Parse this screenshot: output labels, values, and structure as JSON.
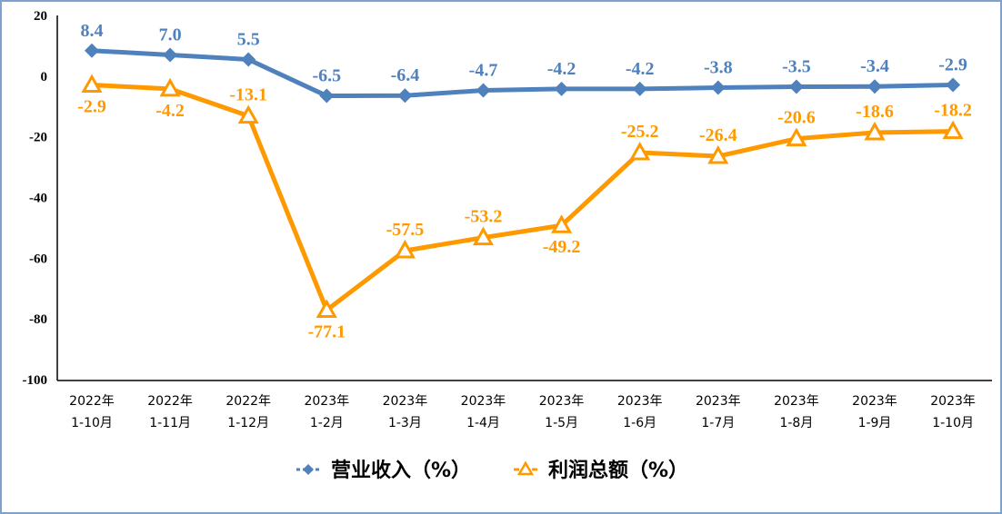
{
  "chart_data": {
    "type": "line",
    "categories": [
      [
        "2022年",
        "1-10月"
      ],
      [
        "2022年",
        "1-11月"
      ],
      [
        "2022年",
        "1-12月"
      ],
      [
        "2023年",
        "1-2月"
      ],
      [
        "2023年",
        "1-3月"
      ],
      [
        "2023年",
        "1-4月"
      ],
      [
        "2023年",
        "1-5月"
      ],
      [
        "2023年",
        "1-6月"
      ],
      [
        "2023年",
        "1-7月"
      ],
      [
        "2023年",
        "1-8月"
      ],
      [
        "2023年",
        "1-9月"
      ],
      [
        "2023年",
        "1-10月"
      ]
    ],
    "series": [
      {
        "name": "营业收入（%）",
        "color": "#4F81BD",
        "marker": "diamond",
        "values": [
          8.4,
          7.0,
          5.5,
          -6.5,
          -6.4,
          -4.7,
          -4.2,
          -4.2,
          -3.8,
          -3.5,
          -3.4,
          -2.9
        ],
        "labels": [
          "8.4",
          "7.0",
          "5.5",
          "-6.5",
          "-6.4",
          "-4.7",
          "-4.2",
          "-4.2",
          "-3.8",
          "-3.5",
          "-3.4",
          "-2.9"
        ]
      },
      {
        "name": "利润总额（%）",
        "color": "#FF9900",
        "marker": "triangle",
        "values": [
          -2.9,
          -4.2,
          -13.1,
          -77.1,
          -57.5,
          -53.2,
          -49.2,
          -25.2,
          -26.4,
          -20.6,
          -18.6,
          -18.2
        ],
        "labels": [
          "-2.9",
          "-4.2",
          "-13.1",
          "-77.1",
          "-57.5",
          "-53.2",
          "-49.2",
          "-25.2",
          "-26.4",
          "-20.6",
          "-18.6",
          "-18.2"
        ]
      }
    ],
    "ylim": [
      -100,
      20
    ],
    "yticks": [
      "20",
      "0",
      "-20",
      "-40",
      "-60",
      "-80",
      "-100"
    ],
    "grid": false,
    "legend": "bottom",
    "border_color": "#7FA1CD"
  }
}
